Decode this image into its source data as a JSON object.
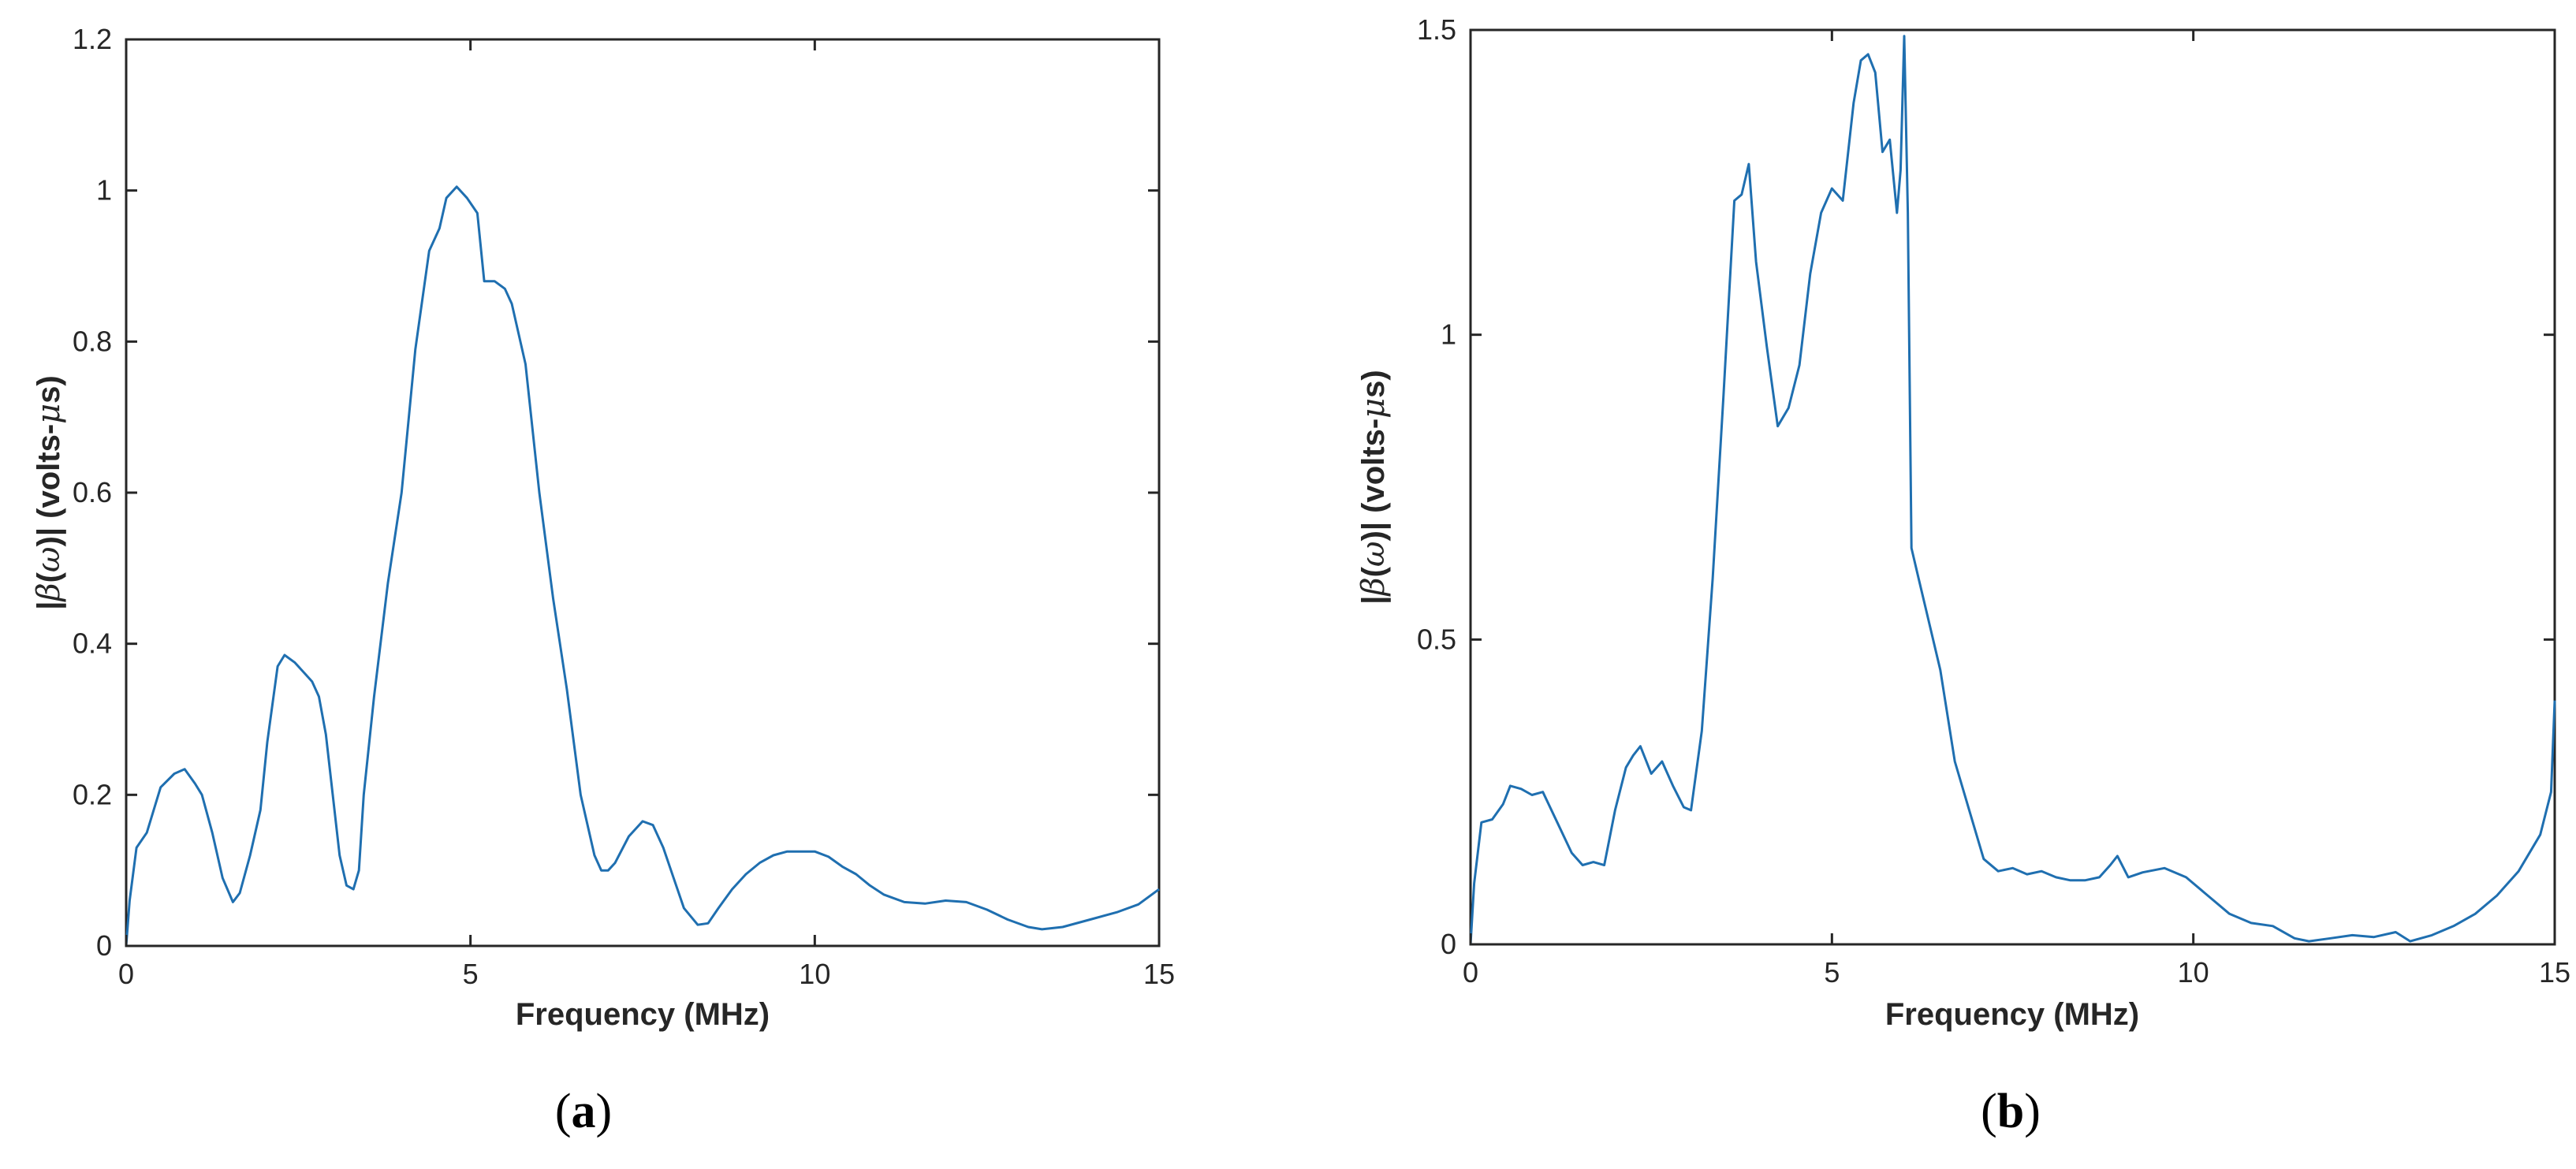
{
  "chart_data": [
    {
      "panel_label": "a",
      "type": "line",
      "xlabel": "Frequency (MHz)",
      "ylabel_parts": [
        "|",
        "β",
        "(",
        "ω",
        ")| (volts-",
        "μ",
        "s)"
      ],
      "xlim": [
        0,
        15
      ],
      "ylim": [
        0,
        1.2
      ],
      "xticks": [
        0,
        5,
        10,
        15
      ],
      "yticks": [
        0,
        0.2,
        0.4,
        0.6,
        0.8,
        1,
        1.2
      ],
      "ytick_labels": [
        "0",
        "0.2",
        "0.4",
        "0.6",
        "0.8",
        "1",
        "1.2"
      ],
      "grid": false,
      "color": "#1f6fb0",
      "series": [
        {
          "x": [
            0,
            0.05,
            0.15,
            0.3,
            0.5,
            0.7,
            0.85,
            1.0,
            1.1,
            1.25,
            1.4,
            1.55,
            1.65,
            1.8,
            1.95,
            2.05,
            2.2,
            2.3,
            2.45,
            2.6,
            2.7,
            2.8,
            2.9,
            3.0,
            3.1,
            3.2,
            3.3,
            3.38,
            3.45,
            3.6,
            3.8,
            4.0,
            4.2,
            4.4,
            4.55,
            4.65,
            4.8,
            4.95,
            5.1,
            5.2,
            5.35,
            5.5,
            5.6,
            5.8,
            6.0,
            6.2,
            6.4,
            6.6,
            6.8,
            6.9,
            7.0,
            7.1,
            7.3,
            7.5,
            7.65,
            7.8,
            7.95,
            8.1,
            8.3,
            8.45,
            8.6,
            8.8,
            9.0,
            9.2,
            9.4,
            9.6,
            9.8,
            10.0,
            10.2,
            10.4,
            10.6,
            10.8,
            11.0,
            11.3,
            11.6,
            11.9,
            12.2,
            12.5,
            12.8,
            13.1,
            13.3,
            13.6,
            14.0,
            14.4,
            14.7,
            15.0
          ],
          "y": [
            0.0,
            0.06,
            0.13,
            0.15,
            0.21,
            0.228,
            0.234,
            0.215,
            0.2,
            0.15,
            0.09,
            0.058,
            0.07,
            0.12,
            0.18,
            0.27,
            0.37,
            0.385,
            0.375,
            0.36,
            0.35,
            0.33,
            0.28,
            0.2,
            0.12,
            0.08,
            0.075,
            0.1,
            0.2,
            0.33,
            0.48,
            0.6,
            0.79,
            0.92,
            0.95,
            0.99,
            1.005,
            0.99,
            0.97,
            0.88,
            0.88,
            0.87,
            0.85,
            0.77,
            0.6,
            0.46,
            0.34,
            0.2,
            0.12,
            0.1,
            0.1,
            0.11,
            0.145,
            0.165,
            0.16,
            0.13,
            0.09,
            0.05,
            0.028,
            0.03,
            0.05,
            0.075,
            0.095,
            0.11,
            0.12,
            0.125,
            0.125,
            0.125,
            0.118,
            0.105,
            0.095,
            0.08,
            0.068,
            0.058,
            0.056,
            0.06,
            0.058,
            0.048,
            0.035,
            0.025,
            0.022,
            0.025,
            0.035,
            0.045,
            0.055,
            0.075
          ]
        }
      ]
    },
    {
      "panel_label": "b",
      "type": "line",
      "xlabel": "Frequency (MHz)",
      "ylabel_parts": [
        "|",
        "β",
        "(",
        "ω",
        ")| (volts-",
        "μ",
        "s)"
      ],
      "xlim": [
        0,
        15
      ],
      "ylim": [
        0,
        1.5
      ],
      "xticks": [
        0,
        5,
        10,
        15
      ],
      "yticks": [
        0,
        0.5,
        1,
        1.5
      ],
      "ytick_labels": [
        "0",
        "0.5",
        "1",
        "1.5"
      ],
      "grid": false,
      "color": "#1f6fb0",
      "series": [
        {
          "x": [
            0,
            0.05,
            0.15,
            0.3,
            0.45,
            0.55,
            0.7,
            0.85,
            1.0,
            1.2,
            1.4,
            1.55,
            1.7,
            1.85,
            2.0,
            2.15,
            2.25,
            2.35,
            2.5,
            2.65,
            2.8,
            2.95,
            3.05,
            3.2,
            3.35,
            3.5,
            3.65,
            3.75,
            3.85,
            3.95,
            4.1,
            4.25,
            4.4,
            4.55,
            4.7,
            4.85,
            5.0,
            5.15,
            5.3,
            5.4,
            5.5,
            5.6,
            5.7,
            5.8,
            5.9,
            5.95,
            6.0,
            6.05,
            6.1,
            6.2,
            6.3,
            6.5,
            6.7,
            6.9,
            7.1,
            7.3,
            7.5,
            7.7,
            7.9,
            8.1,
            8.3,
            8.5,
            8.7,
            8.85,
            8.95,
            9.1,
            9.3,
            9.6,
            9.9,
            10.2,
            10.5,
            10.8,
            11.1,
            11.4,
            11.6,
            11.9,
            12.2,
            12.5,
            12.8,
            13.0,
            13.3,
            13.6,
            13.9,
            14.2,
            14.5,
            14.8,
            14.95,
            15.0
          ],
          "y": [
            0.0,
            0.1,
            0.2,
            0.205,
            0.23,
            0.26,
            0.255,
            0.245,
            0.25,
            0.2,
            0.15,
            0.13,
            0.135,
            0.13,
            0.22,
            0.29,
            0.31,
            0.325,
            0.28,
            0.3,
            0.26,
            0.225,
            0.22,
            0.35,
            0.6,
            0.9,
            1.22,
            1.23,
            1.28,
            1.12,
            0.98,
            0.85,
            0.88,
            0.95,
            1.1,
            1.2,
            1.24,
            1.22,
            1.38,
            1.45,
            1.46,
            1.43,
            1.3,
            1.32,
            1.2,
            1.27,
            1.49,
            1.2,
            0.65,
            0.6,
            0.55,
            0.45,
            0.3,
            0.22,
            0.14,
            0.12,
            0.125,
            0.115,
            0.12,
            0.11,
            0.105,
            0.105,
            0.11,
            0.13,
            0.145,
            0.11,
            0.118,
            0.125,
            0.11,
            0.08,
            0.05,
            0.035,
            0.03,
            0.01,
            0.005,
            0.01,
            0.015,
            0.012,
            0.02,
            0.005,
            0.015,
            0.03,
            0.05,
            0.08,
            0.12,
            0.18,
            0.25,
            0.4
          ]
        }
      ]
    }
  ]
}
